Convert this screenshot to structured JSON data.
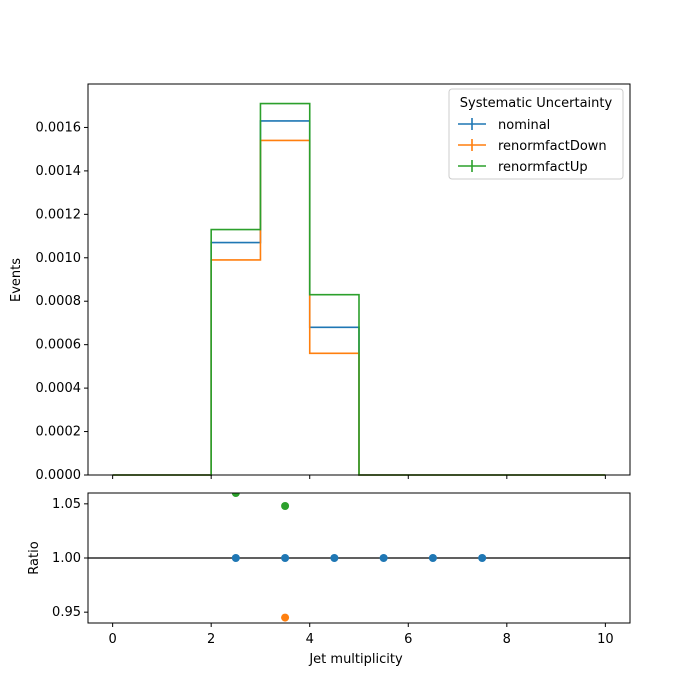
{
  "chart_data": [
    {
      "type": "step",
      "xlabel": "",
      "ylabel": "Events",
      "xlim": [
        -0.5,
        10.5
      ],
      "ylim": [
        0,
        0.0018
      ],
      "xticks": [
        0,
        2,
        4,
        6,
        8,
        10
      ],
      "yticks": [
        0,
        0.0002,
        0.0004,
        0.0006,
        0.0008,
        0.001,
        0.0012,
        0.0014,
        0.0016
      ],
      "ytick_labels": [
        "0.0000",
        "0.0002",
        "0.0004",
        "0.0006",
        "0.0008",
        "0.0010",
        "0.0012",
        "0.0014",
        "0.0016"
      ],
      "bin_edges": [
        0,
        1,
        2,
        3,
        4,
        5,
        6,
        7,
        8,
        9,
        10
      ],
      "legend": {
        "title": "Systematic Uncertainty",
        "placement": "top-right"
      },
      "grid": false,
      "series": [
        {
          "name": "nominal",
          "color": "#1f77b4",
          "values": [
            0,
            0,
            0.00107,
            0.00163,
            0.00068,
            0,
            0,
            0,
            0,
            0
          ]
        },
        {
          "name": "renormfactDown",
          "color": "#ff7f0e",
          "values": [
            0,
            0,
            0.00099,
            0.00154,
            0.00056,
            0,
            0,
            0,
            0,
            0
          ]
        },
        {
          "name": "renormfactUp",
          "color": "#2ca02c",
          "values": [
            0,
            0,
            0.00113,
            0.00171,
            0.00083,
            0,
            0,
            0,
            0,
            0
          ]
        }
      ]
    },
    {
      "type": "scatter",
      "xlabel": "Jet multiplicity",
      "ylabel": "Ratio",
      "xlim": [
        -0.5,
        10.5
      ],
      "ylim": [
        0.94,
        1.06
      ],
      "xticks": [
        0,
        2,
        4,
        6,
        8,
        10
      ],
      "yticks": [
        0.95,
        1.0,
        1.05
      ],
      "ytick_labels": [
        "0.95",
        "1.00",
        "1.05"
      ],
      "reference_line": 1.0,
      "grid": false,
      "series": [
        {
          "name": "nominal",
          "color": "#1f77b4",
          "x": [
            2.5,
            3.5,
            4.5,
            5.5,
            6.5,
            7.5
          ],
          "y": [
            1.0,
            1.0,
            1.0,
            1.0,
            1.0,
            1.0
          ]
        },
        {
          "name": "renormfactDown",
          "color": "#ff7f0e",
          "x": [
            3.5
          ],
          "y": [
            0.945
          ]
        },
        {
          "name": "renormfactUp",
          "color": "#2ca02c",
          "x": [
            2.5,
            3.5
          ],
          "y": [
            1.06,
            1.048
          ]
        }
      ]
    }
  ]
}
